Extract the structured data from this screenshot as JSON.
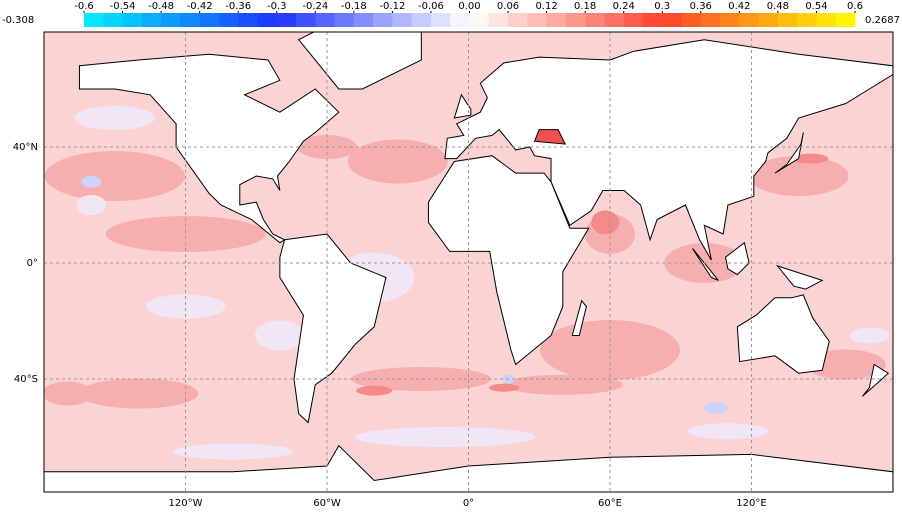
{
  "colorbar": {
    "ticks": [
      -0.6,
      -0.54,
      -0.48,
      -0.42,
      -0.36,
      -0.3,
      -0.24,
      -0.18,
      -0.12,
      -0.06,
      {
        "value": 0,
        "label": "0.00"
      },
      0.06,
      0.12,
      0.18,
      0.24,
      0.3,
      0.36,
      0.42,
      0.48,
      0.54,
      0.6
    ],
    "min_label": -0.308,
    "max_label": 0.2687
  },
  "map": {
    "x_labels": [
      "120°W",
      "60°W",
      "0°",
      "60°E",
      "120°E"
    ],
    "y_labels": [
      "40°N",
      "0°",
      "40°S"
    ]
  }
}
